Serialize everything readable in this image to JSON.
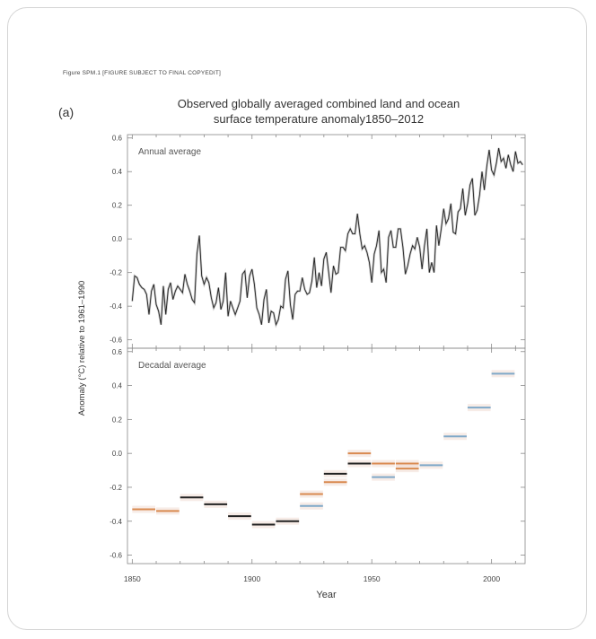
{
  "caption": "Figure SPM.1 [FIGURE SUBJECT TO FINAL COPYEDIT]",
  "panel_label": "(a)",
  "title_line1": "Observed globally averaged combined land and ocean",
  "title_line2": "surface temperature anomaly1850–2012",
  "chart_data": {
    "type": "line",
    "title": "Observed globally averaged combined land and ocean surface temperature anomaly1850–2012",
    "xlabel": "Year",
    "ylabel": "Anomaly (°C) relative to 1961–1990",
    "x_ticks": [
      "1850",
      "1900",
      "1950",
      "2000"
    ],
    "xlim": [
      1848,
      2014
    ],
    "colors": {
      "black": "#222222",
      "blue": "#7fa8c8",
      "orange": "#d98a50",
      "band": "#e8c8bb"
    },
    "panels": [
      {
        "name": "Annual average",
        "ylim": [
          -0.65,
          0.62
        ],
        "y_ticks": [
          "0.6",
          "0.4",
          "0.2",
          "0.0",
          "-0.2",
          "-0.4",
          "-0.6"
        ],
        "y_tick_values": [
          0.6,
          0.4,
          0.2,
          0.0,
          -0.2,
          -0.4,
          -0.6
        ],
        "x_start": 1850,
        "values": [
          -0.37,
          -0.22,
          -0.23,
          -0.27,
          -0.29,
          -0.3,
          -0.33,
          -0.45,
          -0.31,
          -0.27,
          -0.39,
          -0.43,
          -0.51,
          -0.28,
          -0.45,
          -0.3,
          -0.26,
          -0.36,
          -0.31,
          -0.28,
          -0.3,
          -0.32,
          -0.21,
          -0.27,
          -0.31,
          -0.36,
          -0.38,
          -0.09,
          0.02,
          -0.22,
          -0.27,
          -0.23,
          -0.26,
          -0.35,
          -0.41,
          -0.38,
          -0.29,
          -0.42,
          -0.37,
          -0.2,
          -0.46,
          -0.37,
          -0.41,
          -0.45,
          -0.41,
          -0.37,
          -0.21,
          -0.19,
          -0.35,
          -0.22,
          -0.18,
          -0.27,
          -0.41,
          -0.45,
          -0.51,
          -0.36,
          -0.3,
          -0.5,
          -0.43,
          -0.44,
          -0.51,
          -0.48,
          -0.4,
          -0.41,
          -0.24,
          -0.19,
          -0.39,
          -0.48,
          -0.33,
          -0.31,
          -0.31,
          -0.23,
          -0.3,
          -0.33,
          -0.32,
          -0.25,
          -0.11,
          -0.29,
          -0.2,
          -0.28,
          -0.12,
          -0.08,
          -0.2,
          -0.32,
          -0.16,
          -0.21,
          -0.2,
          -0.05,
          -0.05,
          -0.07,
          0.03,
          0.06,
          0.03,
          0.03,
          0.15,
          0.03,
          -0.06,
          -0.04,
          -0.08,
          -0.14,
          -0.26,
          -0.09,
          -0.04,
          0.05,
          -0.2,
          -0.18,
          -0.26,
          0.01,
          0.05,
          -0.05,
          -0.05,
          0.06,
          0.06,
          -0.05,
          -0.21,
          -0.16,
          -0.09,
          -0.04,
          -0.06,
          0.01,
          -0.05,
          -0.18,
          -0.04,
          0.06,
          -0.2,
          -0.14,
          -0.2,
          0.08,
          -0.04,
          0.06,
          0.18,
          0.09,
          0.12,
          0.21,
          0.04,
          0.03,
          0.16,
          0.18,
          0.3,
          0.14,
          0.21,
          0.32,
          0.36,
          0.14,
          0.17,
          0.26,
          0.4,
          0.29,
          0.43,
          0.53,
          0.41,
          0.38,
          0.45,
          0.54,
          0.46,
          0.48,
          0.42,
          0.5,
          0.44,
          0.4,
          0.52,
          0.45,
          0.46,
          0.44
        ]
      },
      {
        "name": "Decadal average",
        "ylim": [
          -0.65,
          0.62
        ],
        "y_ticks": [
          "0.6",
          "0.4",
          "0.2",
          "0.0",
          "-0.2",
          "-0.4",
          "-0.6"
        ],
        "y_tick_values": [
          0.6,
          0.4,
          0.2,
          0.0,
          -0.2,
          -0.4,
          -0.6
        ],
        "decades": [
          {
            "start": 1850,
            "end": 1860,
            "value": -0.33,
            "color": "orange"
          },
          {
            "start": 1860,
            "end": 1870,
            "value": -0.34,
            "color": "orange"
          },
          {
            "start": 1870,
            "end": 1880,
            "value": -0.26,
            "color": "black"
          },
          {
            "start": 1880,
            "end": 1890,
            "value": -0.3,
            "color": "black"
          },
          {
            "start": 1890,
            "end": 1900,
            "value": -0.37,
            "color": "black"
          },
          {
            "start": 1900,
            "end": 1910,
            "value": -0.42,
            "color": "black"
          },
          {
            "start": 1910,
            "end": 1920,
            "value": -0.4,
            "color": "black"
          },
          {
            "start": 1920,
            "end": 1930,
            "value": -0.31,
            "color": "blue"
          },
          {
            "start": 1920,
            "end": 1930,
            "value": -0.24,
            "color": "orange"
          },
          {
            "start": 1930,
            "end": 1940,
            "value": -0.17,
            "color": "orange"
          },
          {
            "start": 1930,
            "end": 1940,
            "value": -0.12,
            "color": "black"
          },
          {
            "start": 1940,
            "end": 1950,
            "value": 0.0,
            "color": "orange"
          },
          {
            "start": 1940,
            "end": 1950,
            "value": -0.06,
            "color": "black"
          },
          {
            "start": 1950,
            "end": 1960,
            "value": -0.14,
            "color": "blue"
          },
          {
            "start": 1950,
            "end": 1960,
            "value": -0.06,
            "color": "orange"
          },
          {
            "start": 1960,
            "end": 1970,
            "value": -0.09,
            "color": "orange"
          },
          {
            "start": 1960,
            "end": 1970,
            "value": -0.06,
            "color": "orange"
          },
          {
            "start": 1970,
            "end": 1980,
            "value": -0.07,
            "color": "blue"
          },
          {
            "start": 1980,
            "end": 1990,
            "value": 0.1,
            "color": "blue"
          },
          {
            "start": 1990,
            "end": 2000,
            "value": 0.27,
            "color": "blue"
          },
          {
            "start": 2000,
            "end": 2010,
            "value": 0.47,
            "color": "blue"
          }
        ]
      }
    ]
  }
}
